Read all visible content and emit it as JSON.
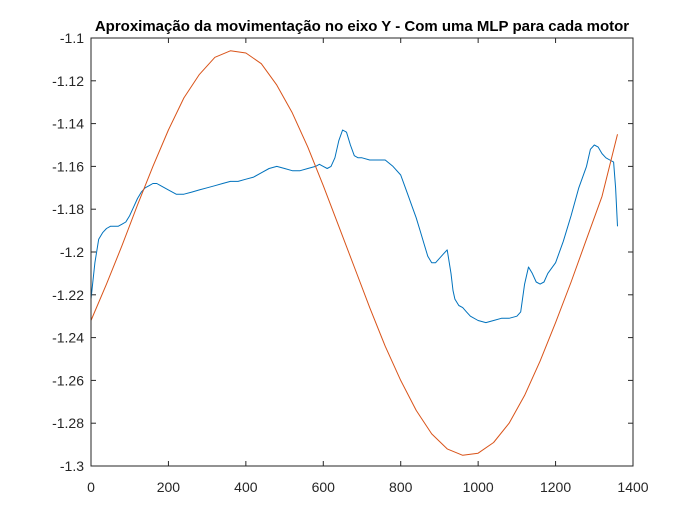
{
  "chart_data": {
    "type": "line",
    "title": "Aproximação da movimentação no eixo Y - Com uma MLP para cada motor",
    "xlabel": "",
    "ylabel": "",
    "xlim": [
      0,
      1400
    ],
    "ylim": [
      -1.3,
      -1.1
    ],
    "xticks": [
      0,
      200,
      400,
      600,
      800,
      1000,
      1200,
      1400
    ],
    "xtick_labels": [
      "0",
      "200",
      "400",
      "600",
      "800",
      "1000",
      "1200",
      "1400"
    ],
    "yticks": [
      -1.1,
      -1.12,
      -1.14,
      -1.16,
      -1.18,
      -1.2,
      -1.22,
      -1.24,
      -1.26,
      -1.28,
      -1.3
    ],
    "ytick_labels": [
      "-1.1",
      "-1.12",
      "-1.14",
      "-1.16",
      "-1.18",
      "-1.2",
      "-1.22",
      "-1.24",
      "-1.26",
      "-1.28",
      "-1.3"
    ],
    "grid": false,
    "legend": "none",
    "series": [
      {
        "color": "#0072BD",
        "x": [
          0,
          10,
          20,
          30,
          40,
          50,
          60,
          70,
          80,
          90,
          100,
          110,
          120,
          130,
          140,
          150,
          160,
          170,
          180,
          200,
          220,
          240,
          260,
          280,
          300,
          320,
          340,
          360,
          380,
          400,
          420,
          440,
          460,
          480,
          500,
          520,
          540,
          560,
          580,
          590,
          600,
          610,
          620,
          630,
          640,
          650,
          660,
          670,
          680,
          690,
          700,
          720,
          740,
          760,
          780,
          800,
          810,
          820,
          830,
          840,
          850,
          860,
          870,
          880,
          890,
          900,
          910,
          920,
          930,
          935,
          940,
          950,
          960,
          970,
          980,
          1000,
          1020,
          1040,
          1060,
          1080,
          1100,
          1110,
          1120,
          1130,
          1140,
          1150,
          1160,
          1170,
          1180,
          1200,
          1220,
          1240,
          1260,
          1280,
          1290,
          1300,
          1310,
          1320,
          1330,
          1340,
          1350,
          1355,
          1360
        ],
        "values": [
          -1.222,
          -1.205,
          -1.194,
          -1.191,
          -1.189,
          -1.188,
          -1.188,
          -1.188,
          -1.187,
          -1.186,
          -1.183,
          -1.179,
          -1.175,
          -1.172,
          -1.17,
          -1.169,
          -1.168,
          -1.168,
          -1.169,
          -1.171,
          -1.173,
          -1.173,
          -1.172,
          -1.171,
          -1.17,
          -1.169,
          -1.168,
          -1.167,
          -1.167,
          -1.166,
          -1.165,
          -1.163,
          -1.161,
          -1.16,
          -1.161,
          -1.162,
          -1.162,
          -1.161,
          -1.16,
          -1.159,
          -1.16,
          -1.161,
          -1.16,
          -1.156,
          -1.148,
          -1.143,
          -1.144,
          -1.15,
          -1.155,
          -1.156,
          -1.156,
          -1.157,
          -1.157,
          -1.157,
          -1.16,
          -1.164,
          -1.169,
          -1.174,
          -1.179,
          -1.184,
          -1.19,
          -1.196,
          -1.202,
          -1.205,
          -1.205,
          -1.203,
          -1.201,
          -1.199,
          -1.21,
          -1.218,
          -1.222,
          -1.225,
          -1.226,
          -1.228,
          -1.23,
          -1.232,
          -1.233,
          -1.232,
          -1.231,
          -1.231,
          -1.23,
          -1.228,
          -1.215,
          -1.207,
          -1.21,
          -1.214,
          -1.215,
          -1.214,
          -1.21,
          -1.205,
          -1.195,
          -1.183,
          -1.17,
          -1.16,
          -1.152,
          -1.15,
          -1.151,
          -1.154,
          -1.156,
          -1.157,
          -1.158,
          -1.17,
          -1.188
        ]
      },
      {
        "color": "#D95319",
        "x": [
          0,
          40,
          80,
          120,
          160,
          200,
          240,
          280,
          320,
          360,
          400,
          440,
          480,
          520,
          560,
          600,
          640,
          680,
          720,
          760,
          800,
          840,
          880,
          920,
          960,
          1000,
          1040,
          1080,
          1120,
          1160,
          1200,
          1240,
          1280,
          1320,
          1360
        ],
        "values": [
          -1.232,
          -1.215,
          -1.197,
          -1.178,
          -1.16,
          -1.143,
          -1.128,
          -1.117,
          -1.109,
          -1.106,
          -1.107,
          -1.112,
          -1.122,
          -1.135,
          -1.151,
          -1.169,
          -1.188,
          -1.207,
          -1.226,
          -1.244,
          -1.26,
          -1.274,
          -1.285,
          -1.292,
          -1.295,
          -1.294,
          -1.289,
          -1.28,
          -1.267,
          -1.251,
          -1.233,
          -1.214,
          -1.194,
          -1.174,
          -1.145
        ]
      }
    ]
  }
}
